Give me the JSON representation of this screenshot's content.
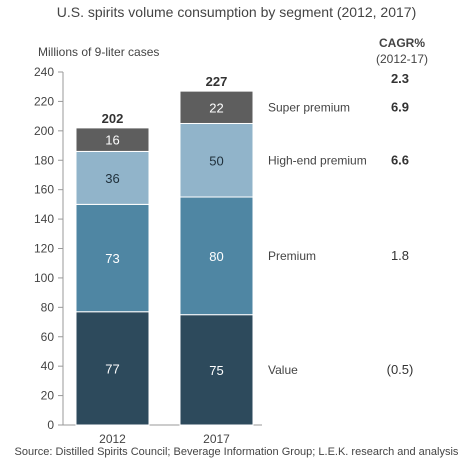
{
  "title": "U.S. spirits volume consumption by segment (2012, 2017)",
  "source": "Source: Distilled Spirits Council; Beverage Information Group; L.E.K. research and analysis",
  "chart_data": {
    "type": "bar",
    "stacked": true,
    "title": "U.S. spirits volume consumption by segment (2012, 2017)",
    "ylabel": "Millions of 9-liter cases",
    "xlabel": "",
    "ylim": [
      0,
      240
    ],
    "yticks": [
      0,
      20,
      40,
      60,
      80,
      100,
      120,
      140,
      160,
      180,
      200,
      220,
      240
    ],
    "categories": [
      "2012",
      "2017"
    ],
    "totals": [
      202,
      227
    ],
    "series": [
      {
        "name": "Value",
        "values": [
          77,
          75
        ],
        "color": "#2d4a5c",
        "cagr": "(0.5)",
        "cagr_bold": false
      },
      {
        "name": "Premium",
        "values": [
          73,
          80
        ],
        "color": "#4f86a3",
        "cagr": "1.8",
        "cagr_bold": false
      },
      {
        "name": "High-end premium",
        "values": [
          36,
          50
        ],
        "color": "#91b4ca",
        "cagr": "6.6",
        "cagr_bold": true
      },
      {
        "name": "Super premium",
        "values": [
          16,
          22
        ],
        "color": "#5e5e5e",
        "cagr": "6.9",
        "cagr_bold": true
      }
    ],
    "cagr_header": "CAGR%",
    "cagr_period": "(2012-17)",
    "cagr_total": "2.3",
    "legend": "right",
    "grid": false
  }
}
